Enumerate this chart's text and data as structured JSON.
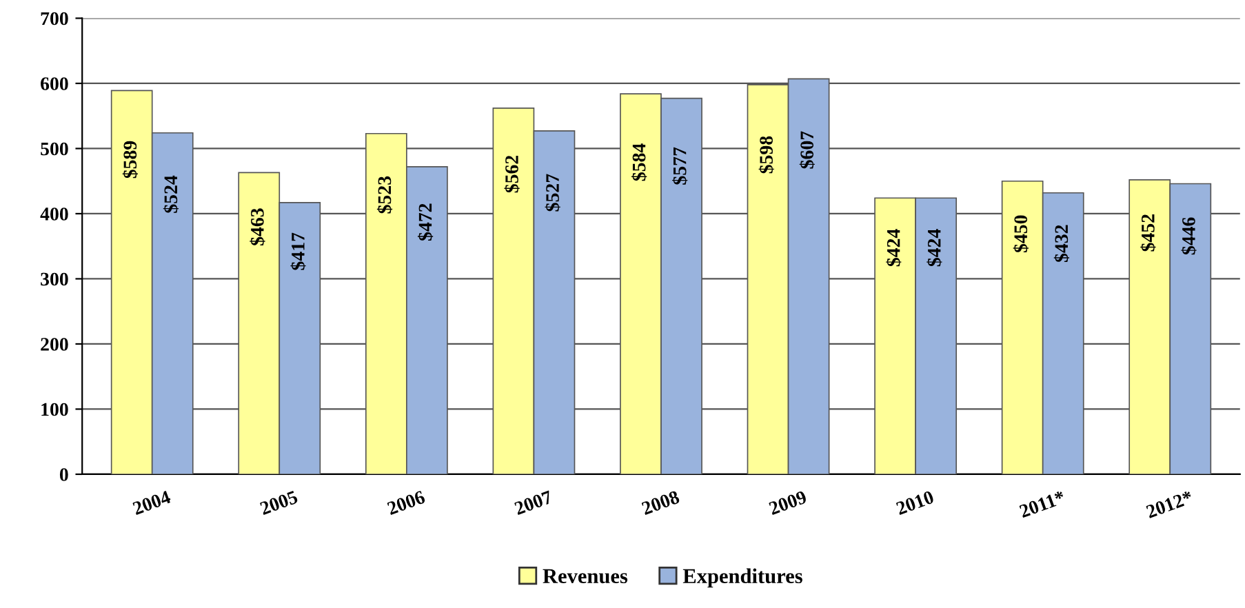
{
  "chart_data": {
    "type": "bar",
    "categories": [
      "2004",
      "2005",
      "2006",
      "2007",
      "2008",
      "2009",
      "2010",
      "2011*",
      "2012*"
    ],
    "series": [
      {
        "name": "Revenues",
        "color": "#ffff99",
        "values": [
          589,
          463,
          523,
          562,
          584,
          598,
          424,
          450,
          452
        ],
        "value_labels": [
          "$589",
          "$463",
          "$523",
          "$562",
          "$584",
          "$598",
          "$424",
          "$450",
          "$452"
        ]
      },
      {
        "name": "Expenditures",
        "color": "#99b3dd",
        "values": [
          524,
          417,
          472,
          527,
          577,
          607,
          424,
          432,
          446
        ],
        "value_labels": [
          "$524",
          "$417",
          "$472",
          "$527",
          "$577",
          "$607",
          "$424",
          "$432",
          "$446"
        ]
      }
    ],
    "ylim": [
      0,
      700
    ],
    "yticks": [
      0,
      100,
      200,
      300,
      400,
      500,
      600,
      700
    ],
    "grid": "y",
    "legend": "bottom"
  }
}
